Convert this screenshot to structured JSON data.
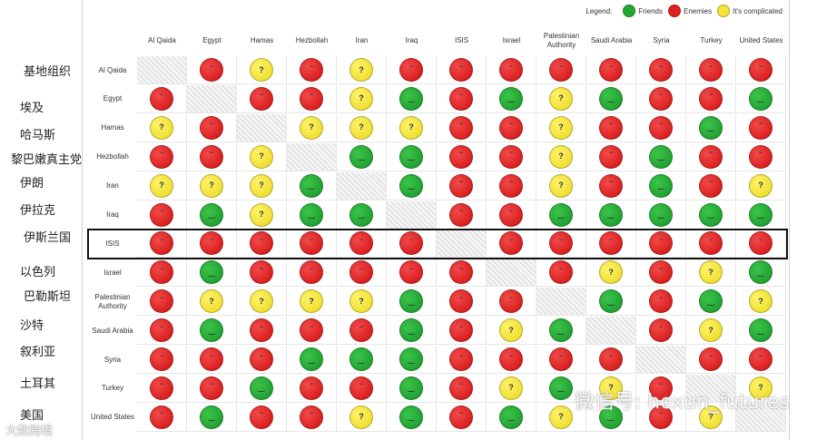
{
  "legend": {
    "title": "Legend:",
    "items": [
      {
        "key": "friend",
        "label": "Friends"
      },
      {
        "key": "enemy",
        "label": "Enemies"
      },
      {
        "key": "complicated",
        "label": "It's complicated"
      }
    ]
  },
  "colors": {
    "friend": "#22a833",
    "enemy": "#e02020",
    "complicated": "#f2e23a"
  },
  "icons": {
    "friend": "smile",
    "enemy": "frown",
    "complicated": "?"
  },
  "columns": [
    "Al Qaida",
    "Egypt",
    "Hamas",
    "Hezbollah",
    "Iran",
    "Iraq",
    "ISIS",
    "Israel",
    "Palestinian Authority",
    "Saudi Arabia",
    "Syria",
    "Turkey",
    "United States"
  ],
  "rows": [
    {
      "label": "Al Qaida",
      "zh": "基地组织",
      "cells": [
        "x",
        "E",
        "C",
        "E",
        "C",
        "E",
        "E",
        "E",
        "E",
        "E",
        "E",
        "E",
        "E"
      ]
    },
    {
      "label": "Egypt",
      "zh": "埃及",
      "cells": [
        "E",
        "x",
        "E",
        "E",
        "C",
        "F",
        "E",
        "F",
        "C",
        "F",
        "E",
        "E",
        "F"
      ]
    },
    {
      "label": "Hamas",
      "zh": "哈马斯",
      "cells": [
        "C",
        "E",
        "x",
        "C",
        "C",
        "C",
        "E",
        "E",
        "C",
        "E",
        "E",
        "F",
        "E"
      ]
    },
    {
      "label": "Hezbollah",
      "zh": "黎巴嫩真主党",
      "cells": [
        "E",
        "E",
        "C",
        "x",
        "F",
        "F",
        "E",
        "E",
        "C",
        "E",
        "F",
        "E",
        "E"
      ]
    },
    {
      "label": "Iran",
      "zh": "伊朗",
      "cells": [
        "C",
        "C",
        "C",
        "F",
        "x",
        "F",
        "E",
        "E",
        "C",
        "E",
        "F",
        "E",
        "C"
      ]
    },
    {
      "label": "Iraq",
      "zh": "伊拉克",
      "cells": [
        "E",
        "F",
        "C",
        "F",
        "F",
        "x",
        "E",
        "E",
        "F",
        "F",
        "F",
        "F",
        "F"
      ]
    },
    {
      "label": "ISIS",
      "zh": "伊斯兰国",
      "cells": [
        "E",
        "E",
        "E",
        "E",
        "E",
        "E",
        "x",
        "E",
        "E",
        "E",
        "E",
        "E",
        "E"
      ]
    },
    {
      "label": "Israel",
      "zh": "以色列",
      "cells": [
        "E",
        "F",
        "E",
        "E",
        "E",
        "E",
        "E",
        "x",
        "E",
        "C",
        "E",
        "C",
        "F"
      ]
    },
    {
      "label": "Palestinian Authority",
      "zh": "巴勒斯坦",
      "cells": [
        "E",
        "C",
        "C",
        "C",
        "C",
        "F",
        "E",
        "E",
        "x",
        "F",
        "E",
        "F",
        "C"
      ]
    },
    {
      "label": "Saudi Arabia",
      "zh": "沙特",
      "cells": [
        "E",
        "F",
        "E",
        "E",
        "E",
        "F",
        "E",
        "C",
        "F",
        "x",
        "E",
        "C",
        "F"
      ]
    },
    {
      "label": "Syria",
      "zh": "叙利亚",
      "cells": [
        "E",
        "E",
        "E",
        "F",
        "F",
        "F",
        "E",
        "E",
        "E",
        "E",
        "x",
        "E",
        "E"
      ]
    },
    {
      "label": "Turkey",
      "zh": "土耳其",
      "cells": [
        "E",
        "E",
        "F",
        "E",
        "E",
        "F",
        "E",
        "C",
        "F",
        "C",
        "E",
        "x",
        "C"
      ]
    },
    {
      "label": "United States",
      "zh": "美国",
      "cells": [
        "E",
        "F",
        "E",
        "E",
        "C",
        "F",
        "E",
        "F",
        "C",
        "F",
        "E",
        "C",
        "x"
      ]
    }
  ],
  "highlighted_row": "ISIS",
  "watermark": "微信号: hexun_futures",
  "watermark2": "大数跨境"
}
